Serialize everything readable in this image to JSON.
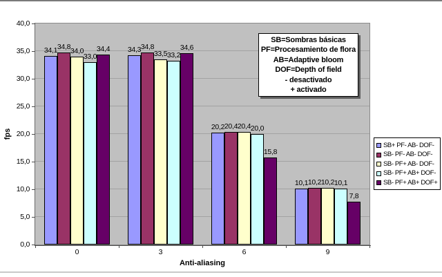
{
  "page": {
    "background_color": "#ffffff",
    "top_edge_color": "#7a7a7a",
    "bottom_edge_color": "#c9c9c9"
  },
  "chart_data": {
    "type": "bar",
    "title": "",
    "xlabel": "Anti-aliasing",
    "ylabel": "fps",
    "categories": [
      "0",
      "3",
      "6",
      "9"
    ],
    "series": [
      {
        "name": "SB+ PF- AB- DOF-",
        "color": "#9999FF",
        "values": [
          34.1,
          34.3,
          20.2,
          10.1
        ]
      },
      {
        "name": "SB- PF- AB- DOF-",
        "color": "#993366",
        "values": [
          34.8,
          34.8,
          20.4,
          10.2
        ]
      },
      {
        "name": "SB- PF+ AB- DOF-",
        "color": "#FFFFCC",
        "values": [
          34.0,
          33.5,
          20.4,
          10.2
        ]
      },
      {
        "name": "SB- PF+ AB+ DOF-",
        "color": "#CCFFFF",
        "values": [
          33.0,
          33.2,
          20.0,
          10.1
        ]
      },
      {
        "name": "SB- PF+ AB+ DOF+",
        "color": "#660066",
        "values": [
          34.4,
          34.6,
          15.8,
          7.8
        ]
      }
    ],
    "ylim": [
      0,
      40
    ],
    "ytick_step": 5,
    "decimal_separator": ",",
    "grid": true,
    "data_labels": true,
    "legend_position": "right",
    "plot_background": "#C0C0C0",
    "gridline_color": "#a2a2a2",
    "bar_border_color": "#000000"
  },
  "annotation": {
    "lines": [
      "SB=Sombras básicas",
      "PF=Procesamiento de flora",
      "AB=Adaptive bloom",
      "DOF=Depth of field",
      "- desactivado",
      "+ activado"
    ]
  }
}
